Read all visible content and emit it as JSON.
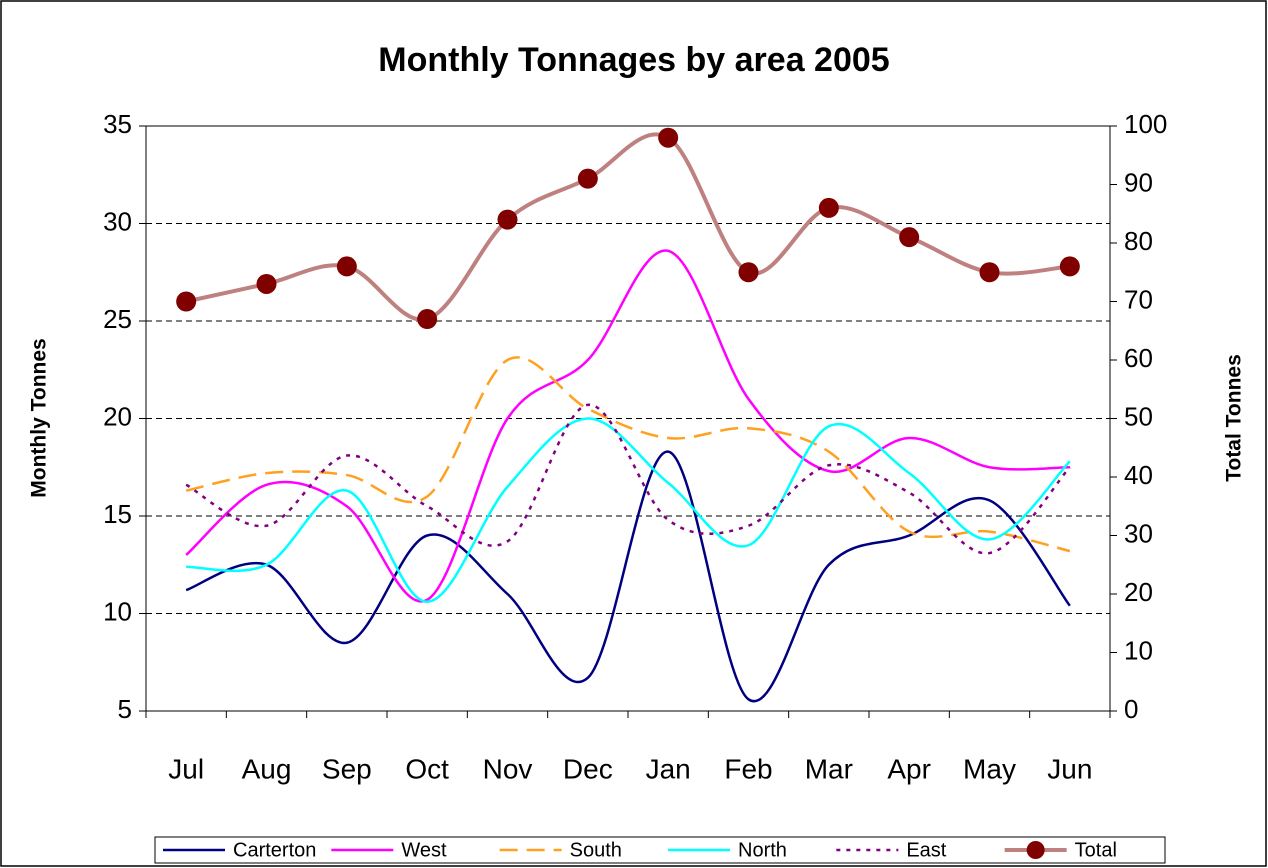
{
  "chart_data": {
    "type": "line",
    "title": "Monthly Tonnages by area 2005",
    "y_label": "Monthly Tonnes",
    "y2_label": "Total Tonnes",
    "categories": [
      "Jul",
      "Aug",
      "Sep",
      "Oct",
      "Nov",
      "Dec",
      "Jan",
      "Feb",
      "Mar",
      "Apr",
      "May",
      "Jun"
    ],
    "series": [
      {
        "name": "Carterton",
        "color": "#000080",
        "dash": "solid",
        "values": [
          11.2,
          12.5,
          8.5,
          14,
          11,
          6.7,
          18.3,
          5.6,
          12.5,
          14,
          15.8,
          10.4
        ]
      },
      {
        "name": "West",
        "color": "#ff00ff",
        "dash": "solid",
        "values": [
          13,
          16.6,
          15.5,
          10.7,
          20,
          23,
          28.6,
          21,
          17.3,
          19,
          17.5,
          17.5
        ]
      },
      {
        "name": "South",
        "color": "#ffa020",
        "dash": "dashed",
        "values": [
          16.3,
          17.2,
          17.1,
          16,
          23,
          20.5,
          19,
          19.5,
          18.3,
          14.2,
          14.2,
          13.2
        ]
      },
      {
        "name": "North",
        "color": "#00ffff",
        "dash": "solid",
        "values": [
          12.4,
          12.5,
          16.3,
          10.6,
          16.5,
          20,
          16.7,
          13.5,
          19.6,
          17.2,
          13.8,
          17.8
        ]
      },
      {
        "name": "East",
        "color": "#800080",
        "dash": "dotted",
        "values": [
          16.6,
          14.5,
          18.1,
          15.5,
          13.7,
          20.7,
          14.8,
          14.5,
          17.6,
          16.2,
          13.1,
          17.5
        ]
      },
      {
        "name": "Total",
        "color": "#bf8080",
        "marker_color": "#800000",
        "axis": "y2",
        "dash": "solid",
        "values": [
          70,
          73,
          76,
          67,
          84,
          91,
          98,
          75,
          86,
          81,
          75,
          76
        ]
      }
    ],
    "ylim": [
      5,
      35
    ],
    "yticks": [
      5,
      10,
      15,
      20,
      25,
      30,
      35
    ],
    "y2lim": [
      0,
      100
    ],
    "y2ticks": [
      0,
      10,
      20,
      30,
      40,
      50,
      60,
      70,
      80,
      90,
      100
    ],
    "grid": true,
    "legend": "bottom"
  }
}
